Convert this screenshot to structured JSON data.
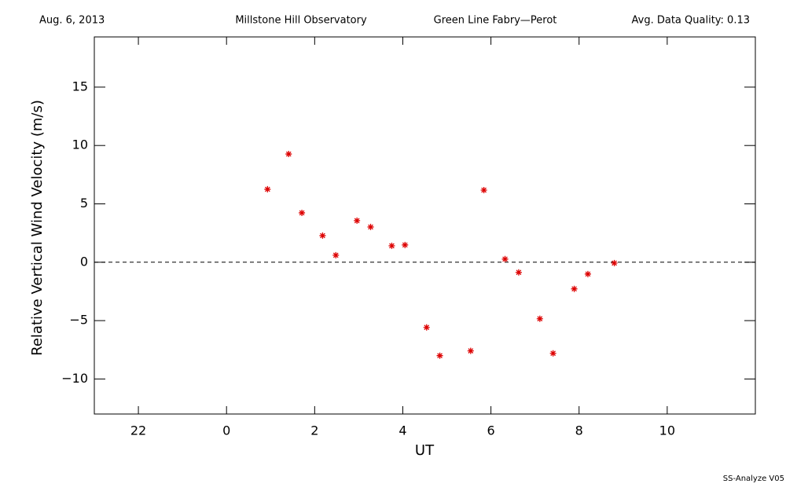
{
  "chart_data": {
    "type": "scatter",
    "date": "Aug. 6, 2013",
    "title": "Millstone Hill Observatory",
    "subtitle": "Green Line Fabry—Perot",
    "quality": "Avg. Data Quality: 0.13",
    "x_label": "UT",
    "y_label": "Relative Vertical Wind Velocity (m/s)",
    "footer": "SS-Analyze V05",
    "xlim": [
      -3,
      12
    ],
    "ylim": [
      -13,
      19.3
    ],
    "xticks": [
      {
        "value": -2,
        "label": "22"
      },
      0,
      2,
      4,
      6,
      8,
      10
    ],
    "yticks": [
      {
        "value": -10,
        "label": "−10"
      },
      {
        "value": -5,
        "label": "−5"
      },
      0,
      5,
      10,
      15
    ],
    "reference_line": 0,
    "grid": false,
    "color": "#dd0000",
    "x": [
      0.93,
      1.41,
      1.71,
      2.18,
      2.48,
      2.96,
      3.27,
      3.75,
      4.05,
      4.54,
      4.84,
      5.54,
      5.84,
      6.32,
      6.63,
      7.11,
      7.41,
      7.89,
      8.2,
      8.8
    ],
    "values": [
      6.25,
      9.27,
      4.23,
      2.28,
      0.6,
      3.56,
      3.02,
      1.41,
      1.48,
      -5.58,
      -8.0,
      -7.59,
      6.18,
      0.27,
      -0.87,
      -4.84,
      -7.8,
      -2.28,
      -1.01,
      -0.07
    ]
  }
}
